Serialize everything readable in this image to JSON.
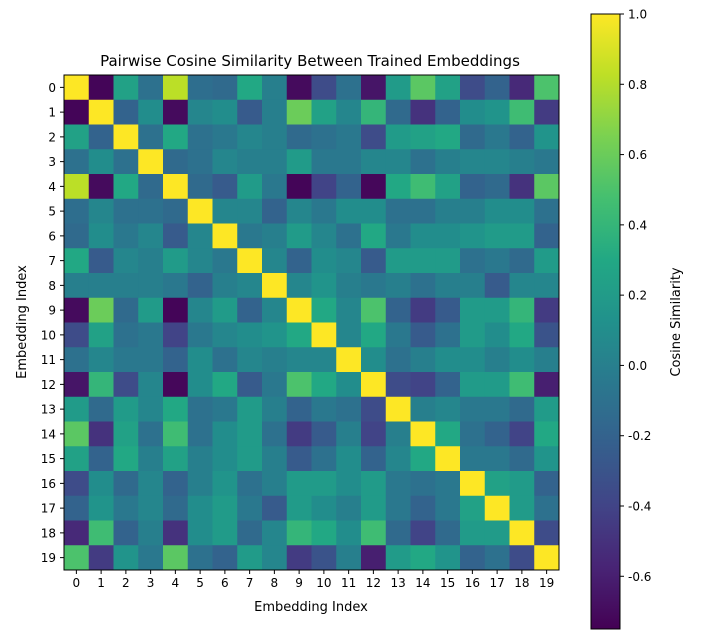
{
  "chart_data": {
    "type": "heatmap",
    "title": "Pairwise Cosine Similarity Between Trained Embeddings",
    "xlabel": "Embedding Index",
    "ylabel": "Embedding Index",
    "x_ticks": [
      "0",
      "1",
      "2",
      "3",
      "4",
      "5",
      "6",
      "7",
      "8",
      "9",
      "10",
      "11",
      "12",
      "13",
      "14",
      "15",
      "16",
      "17",
      "18",
      "19"
    ],
    "y_ticks": [
      "0",
      "1",
      "2",
      "3",
      "4",
      "5",
      "6",
      "7",
      "8",
      "9",
      "10",
      "11",
      "12",
      "13",
      "14",
      "15",
      "16",
      "17",
      "18",
      "19"
    ],
    "colormap": "viridis",
    "vmin": -0.75,
    "vmax": 1.0,
    "colorbar": {
      "label": "Cosine Similarity",
      "ticks": [
        "-0.6",
        "-0.4",
        "-0.2",
        "0.0",
        "0.2",
        "0.4",
        "0.6",
        "0.8",
        "1.0"
      ],
      "tick_values": [
        -0.6,
        -0.4,
        -0.2,
        0.0,
        0.2,
        0.4,
        0.6,
        0.8,
        1.0
      ]
    },
    "matrix": [
      [
        1.0,
        -0.73,
        0.25,
        -0.1,
        0.82,
        -0.12,
        -0.15,
        0.3,
        0.0,
        -0.7,
        -0.35,
        -0.1,
        -0.65,
        0.2,
        0.55,
        0.25,
        -0.35,
        -0.2,
        -0.55,
        0.5
      ],
      [
        -0.73,
        1.0,
        -0.2,
        0.1,
        -0.7,
        0.05,
        0.1,
        -0.25,
        0.0,
        0.6,
        0.25,
        0.05,
        0.4,
        -0.15,
        -0.5,
        -0.2,
        0.1,
        0.15,
        0.45,
        -0.45
      ],
      [
        0.25,
        -0.2,
        1.0,
        -0.1,
        0.3,
        -0.1,
        -0.05,
        0.05,
        0.0,
        -0.15,
        -0.1,
        -0.05,
        -0.35,
        0.2,
        0.25,
        0.3,
        -0.15,
        -0.05,
        -0.2,
        0.15
      ],
      [
        -0.1,
        0.1,
        -0.1,
        1.0,
        -0.15,
        -0.1,
        0.05,
        0.0,
        0.0,
        0.2,
        -0.05,
        -0.05,
        0.05,
        0.05,
        -0.1,
        0.0,
        0.05,
        0.05,
        0.0,
        -0.05
      ],
      [
        0.82,
        -0.7,
        0.3,
        -0.15,
        1.0,
        -0.15,
        -0.25,
        0.2,
        -0.05,
        -0.73,
        -0.4,
        -0.2,
        -0.72,
        0.3,
        0.45,
        0.25,
        -0.2,
        -0.15,
        -0.5,
        0.55
      ],
      [
        -0.12,
        0.05,
        -0.1,
        -0.1,
        -0.15,
        1.0,
        0.05,
        0.05,
        -0.2,
        0.05,
        -0.05,
        0.1,
        0.1,
        -0.1,
        -0.1,
        0.0,
        0.0,
        0.1,
        0.1,
        -0.1
      ],
      [
        -0.15,
        0.1,
        -0.05,
        0.05,
        -0.25,
        0.05,
        1.0,
        -0.05,
        0.0,
        0.2,
        0.05,
        -0.1,
        0.3,
        -0.05,
        0.1,
        0.1,
        0.15,
        0.2,
        0.2,
        -0.2
      ],
      [
        0.3,
        -0.25,
        0.05,
        0.0,
        0.2,
        0.05,
        -0.05,
        1.0,
        0.05,
        -0.2,
        0.1,
        0.05,
        -0.25,
        0.2,
        0.2,
        0.2,
        -0.1,
        -0.05,
        -0.15,
        0.2
      ],
      [
        0.0,
        0.0,
        0.0,
        0.0,
        -0.05,
        -0.2,
        0.0,
        0.05,
        1.0,
        0.05,
        0.15,
        0.0,
        -0.05,
        0.0,
        -0.1,
        0.0,
        0.0,
        -0.25,
        0.05,
        0.05
      ],
      [
        -0.7,
        0.6,
        -0.15,
        0.2,
        -0.73,
        0.05,
        0.2,
        -0.2,
        0.05,
        1.0,
        0.3,
        0.05,
        0.5,
        -0.2,
        -0.45,
        -0.25,
        0.2,
        0.2,
        0.4,
        -0.45
      ],
      [
        -0.35,
        0.25,
        -0.1,
        -0.05,
        -0.4,
        -0.05,
        0.05,
        0.1,
        0.15,
        0.3,
        1.0,
        0.05,
        0.3,
        -0.05,
        -0.25,
        -0.1,
        0.2,
        0.1,
        0.3,
        -0.3
      ],
      [
        -0.1,
        0.05,
        -0.05,
        -0.05,
        -0.2,
        0.1,
        -0.1,
        0.05,
        0.0,
        0.05,
        0.05,
        1.0,
        0.1,
        -0.1,
        0.0,
        0.1,
        0.1,
        0.0,
        0.1,
        0.0
      ],
      [
        -0.65,
        0.4,
        -0.35,
        0.05,
        -0.72,
        0.1,
        0.3,
        -0.25,
        -0.05,
        0.5,
        0.3,
        0.1,
        1.0,
        -0.35,
        -0.4,
        -0.2,
        0.2,
        0.2,
        0.45,
        -0.6
      ],
      [
        0.2,
        -0.15,
        0.2,
        0.05,
        0.3,
        -0.1,
        -0.05,
        0.2,
        0.0,
        -0.2,
        -0.05,
        -0.1,
        -0.35,
        1.0,
        0.0,
        0.05,
        -0.05,
        -0.05,
        -0.15,
        0.2
      ],
      [
        0.55,
        -0.5,
        0.25,
        -0.1,
        0.45,
        -0.1,
        0.1,
        0.2,
        -0.1,
        -0.45,
        -0.25,
        0.0,
        -0.4,
        0.0,
        1.0,
        0.3,
        -0.1,
        -0.2,
        -0.4,
        0.3
      ],
      [
        0.25,
        -0.2,
        0.3,
        0.0,
        0.25,
        0.0,
        0.1,
        0.2,
        0.0,
        -0.25,
        -0.1,
        0.1,
        -0.2,
        0.05,
        0.3,
        1.0,
        -0.05,
        -0.05,
        -0.15,
        0.15
      ],
      [
        -0.35,
        0.1,
        -0.15,
        0.05,
        -0.2,
        0.0,
        0.15,
        -0.1,
        0.0,
        0.2,
        0.2,
        0.1,
        0.2,
        -0.05,
        -0.1,
        -0.05,
        1.0,
        0.25,
        0.2,
        -0.2
      ],
      [
        -0.2,
        0.15,
        -0.05,
        0.05,
        -0.15,
        0.1,
        0.2,
        -0.05,
        -0.25,
        0.2,
        0.1,
        0.0,
        0.2,
        -0.05,
        -0.2,
        -0.05,
        0.25,
        1.0,
        0.2,
        -0.1
      ],
      [
        -0.55,
        0.45,
        -0.2,
        0.0,
        -0.5,
        0.1,
        0.2,
        -0.15,
        0.05,
        0.4,
        0.3,
        0.1,
        0.45,
        -0.15,
        -0.4,
        -0.15,
        0.2,
        0.2,
        1.0,
        -0.35
      ],
      [
        0.5,
        -0.45,
        0.15,
        -0.05,
        0.55,
        -0.1,
        -0.2,
        0.2,
        0.05,
        -0.45,
        -0.3,
        0.0,
        -0.6,
        0.2,
        0.3,
        0.15,
        -0.2,
        -0.1,
        -0.35,
        1.0
      ]
    ]
  }
}
